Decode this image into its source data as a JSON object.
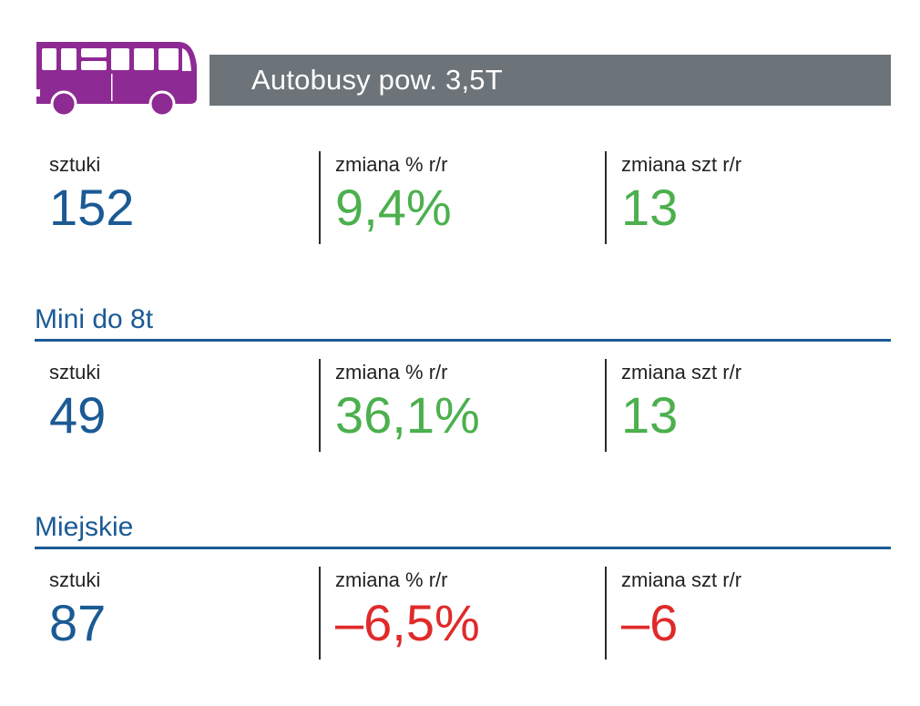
{
  "header": {
    "icon": "bus-icon",
    "title": "Autobusy pow. 3,5T",
    "bar_color": "#6d7479",
    "icon_color": "#8e2a93"
  },
  "colors": {
    "blue": "#1b5a94",
    "green": "#4bb04d",
    "red": "#e02a2a"
  },
  "total": {
    "units_label": "sztuki",
    "units_value": "152",
    "pct_label": "zmiana % r/r",
    "pct_value": "9,4%",
    "abs_label": "zmiana szt r/r",
    "abs_value": "13"
  },
  "mini": {
    "title": "Mini do 8t",
    "units_label": "sztuki",
    "units_value": "49",
    "pct_label": "zmiana % r/r",
    "pct_value": "36,1%",
    "abs_label": "zmiana szt r/r",
    "abs_value": "13"
  },
  "city": {
    "title": "Miejskie",
    "units_label": "sztuki",
    "units_value": "87",
    "pct_label": "zmiana % r/r",
    "pct_value": "–6,5%",
    "abs_label": "zmiana szt r/r",
    "abs_value": "–6"
  }
}
